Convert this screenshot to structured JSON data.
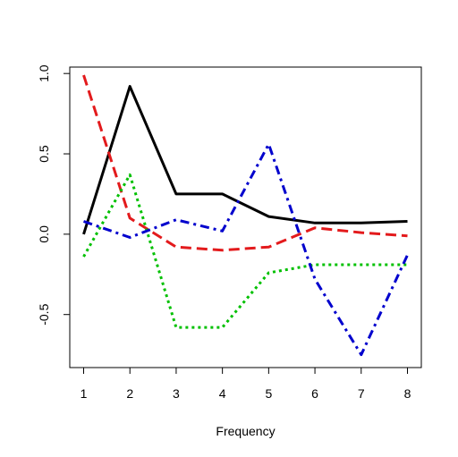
{
  "chart_data": {
    "type": "line",
    "title": "",
    "xlabel": "Frequency",
    "ylabel": "",
    "x": [
      1,
      2,
      3,
      4,
      5,
      6,
      7,
      8
    ],
    "xlim": [
      0.7,
      8.3
    ],
    "ylim": [
      -0.83,
      1.04
    ],
    "xticks": [
      "1",
      "2",
      "3",
      "4",
      "5",
      "6",
      "7",
      "8"
    ],
    "yticks": [
      {
        "value": -0.5,
        "label": "-0.5"
      },
      {
        "value": 0.0,
        "label": "0.0"
      },
      {
        "value": 0.5,
        "label": "0.5"
      },
      {
        "value": 1.0,
        "label": "1.0"
      }
    ],
    "grid": false,
    "legend": "none",
    "series": [
      {
        "name": "solid-black",
        "color": "#000000",
        "style": "solid",
        "values": [
          0.0,
          0.92,
          0.25,
          0.25,
          0.11,
          0.07,
          0.07,
          0.08
        ]
      },
      {
        "name": "dashed-red",
        "color": "#e31a1c",
        "style": "dashed",
        "values": [
          0.99,
          0.1,
          -0.08,
          -0.1,
          -0.08,
          0.04,
          0.01,
          -0.01
        ]
      },
      {
        "name": "dotted-green",
        "color": "#00c000",
        "style": "dotted",
        "values": [
          -0.14,
          0.37,
          -0.58,
          -0.58,
          -0.24,
          -0.19,
          -0.19,
          -0.19
        ]
      },
      {
        "name": "dotdash-blue",
        "color": "#0000cd",
        "style": "dotdash",
        "values": [
          0.08,
          -0.02,
          0.09,
          0.02,
          0.56,
          -0.28,
          -0.75,
          -0.13
        ]
      }
    ]
  }
}
